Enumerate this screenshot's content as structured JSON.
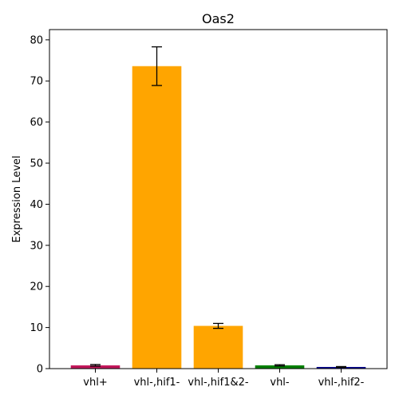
{
  "chart_data": {
    "type": "bar",
    "title": "Oas2",
    "xlabel": "",
    "ylabel": "Expression Level",
    "categories": [
      "vhl+",
      "vhl-,hif1-",
      "vhl-,hif1&2-",
      "vhl-",
      "vhl-,hif2-"
    ],
    "values": [
      0.8,
      73.6,
      10.4,
      0.8,
      0.4
    ],
    "errors": [
      0.2,
      4.7,
      0.6,
      0.15,
      0.1
    ],
    "colors": [
      "#C2185B",
      "#FFA500",
      "#FFA500",
      "#008000",
      "#00008B"
    ],
    "ylim": [
      0,
      82.5
    ],
    "yticks": [
      0,
      10,
      20,
      30,
      40,
      50,
      60,
      70,
      80
    ],
    "grid": false
  }
}
